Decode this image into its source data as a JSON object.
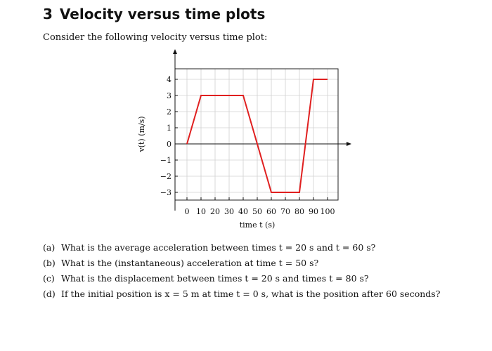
{
  "section": {
    "number": "3",
    "title": "Velocity versus time plots"
  },
  "intro_text": "Consider the following velocity versus time plot:",
  "chart_data": {
    "type": "line",
    "xlabel": "time t (s)",
    "ylabel": "v(t) (m/s)",
    "xlim": [
      0,
      100
    ],
    "ylim": [
      -3,
      4
    ],
    "x_ticks": [
      0,
      10,
      20,
      30,
      40,
      50,
      60,
      70,
      80,
      90,
      100
    ],
    "y_ticks": [
      -3,
      -2,
      -1,
      0,
      1,
      2,
      3,
      4
    ],
    "x_tick_labels": [
      "0",
      "10",
      "20",
      "30",
      "40",
      "50",
      "60",
      "70",
      "80",
      "90",
      "100"
    ],
    "y_tick_labels": [
      "−3",
      "−2",
      "−1",
      "0",
      "1",
      "2",
      "3",
      "4"
    ],
    "grid": true,
    "series": [
      {
        "color": "#e02020",
        "x": [
          0,
          10,
          40,
          60,
          80,
          90,
          100
        ],
        "y": [
          0,
          3,
          3,
          -3,
          -3,
          4,
          4
        ]
      }
    ]
  },
  "questions": [
    {
      "label": "(a)",
      "text": "What is the average acceleration between times t = 20 s and t = 60 s?"
    },
    {
      "label": "(b)",
      "text": "What is the (instantaneous) acceleration at time t = 50 s?"
    },
    {
      "label": "(c)",
      "text": "What is the displacement between times t = 20 s and times t = 80 s?"
    },
    {
      "label": "(d)",
      "text": "If the initial position is x = 5 m at time t = 0 s, what is the position after 60 seconds?"
    }
  ]
}
